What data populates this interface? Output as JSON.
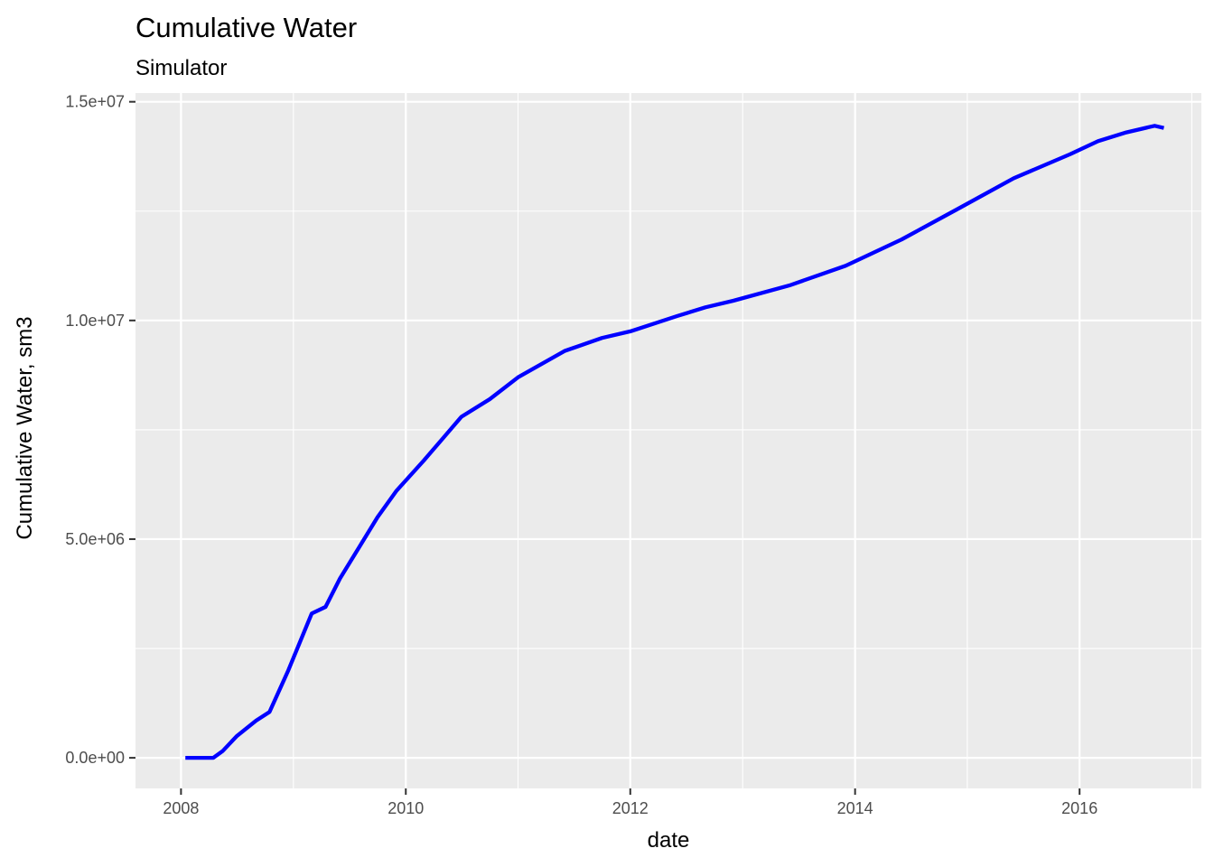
{
  "chart_data": {
    "type": "line",
    "title": "Cumulative Water",
    "subtitle": "Simulator",
    "xlabel": "date",
    "ylabel": "Cumulative Water, sm3",
    "x_axis": {
      "scale": "date",
      "range": [
        "2007-08-06",
        "2017-01-31"
      ],
      "ticks": [
        "2008-01-01",
        "2010-01-01",
        "2012-01-01",
        "2014-01-01",
        "2016-01-01"
      ],
      "tick_labels": [
        "2008",
        "2010",
        "2012",
        "2014",
        "2016"
      ]
    },
    "y_axis": {
      "range": [
        -700000,
        15200000
      ],
      "ticks": [
        0,
        5000000,
        10000000,
        15000000
      ],
      "tick_labels": [
        "0.0e+00",
        "5.0e+06",
        "1.0e+07",
        "1.5e+07"
      ]
    },
    "grid": true,
    "legend": "none",
    "line_color": "#0000ff",
    "panel_background": "#ebebeb",
    "series": [
      {
        "x": [
          "2008-01-15",
          "2008-04-15",
          "2008-05-15",
          "2008-07-01",
          "2008-09-01",
          "2008-10-15",
          "2008-12-15",
          "2009-03-01",
          "2009-04-15",
          "2009-06-01",
          "2009-08-01",
          "2009-10-01",
          "2009-12-01",
          "2010-03-01",
          "2010-05-01",
          "2010-07-01",
          "2010-10-01",
          "2011-01-01",
          "2011-06-01",
          "2011-10-01",
          "2012-01-01",
          "2012-06-01",
          "2012-09-01",
          "2012-12-01",
          "2013-06-01",
          "2013-12-01",
          "2014-06-01",
          "2014-12-01",
          "2015-06-01",
          "2015-12-01",
          "2016-03-01",
          "2016-06-01",
          "2016-09-01",
          "2016-10-01"
        ],
        "y": [
          0,
          0,
          150000,
          500000,
          850000,
          1050000,
          2000000,
          3300000,
          3450000,
          4100000,
          4800000,
          5500000,
          6100000,
          6800000,
          7300000,
          7800000,
          8200000,
          8700000,
          9300000,
          9600000,
          9750000,
          10100000,
          10300000,
          10450000,
          10800000,
          11250000,
          11850000,
          12550000,
          13250000,
          13800000,
          14100000,
          14300000,
          14450000,
          14400000
        ],
        "color": "#0000ff"
      }
    ]
  }
}
